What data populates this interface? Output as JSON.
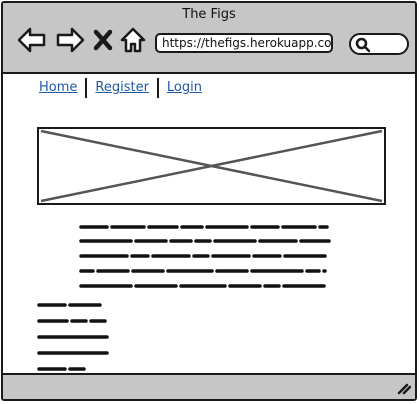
{
  "window": {
    "title": "The Figs"
  },
  "toolbar": {
    "back_icon": "arrow-left-icon",
    "forward_icon": "arrow-right-icon",
    "stop_icon": "close-x-icon",
    "home_icon": "home-icon"
  },
  "address_bar": {
    "url": "https://thefigs.herokuapp.com"
  },
  "search": {
    "icon": "search-icon",
    "placeholder": ""
  },
  "nav_links": [
    {
      "label": "Home"
    },
    {
      "label": "Register"
    },
    {
      "label": "Login"
    }
  ],
  "content": {
    "image_placeholder": "image-placeholder-icon",
    "paragraph": "scribbled placeholder text",
    "list": "scribbled placeholder list"
  },
  "status_bar": {
    "grip_icon": "resize-grip-icon"
  }
}
